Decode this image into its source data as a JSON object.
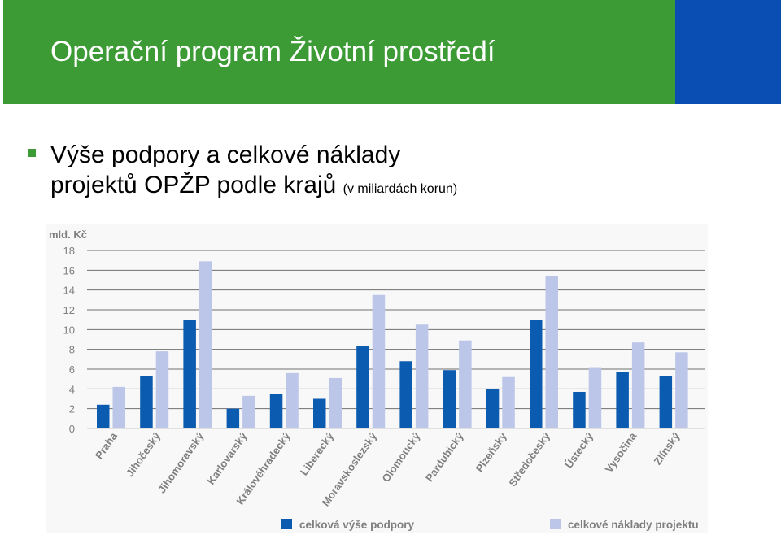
{
  "slide": {
    "title": "Operační program Životní prostředí",
    "subtitle_line1": "Výše podpory a celkové náklady",
    "subtitle_line2": "projektů OPŽP podle krajů",
    "subtitle_note": "(v miliardách korun)"
  },
  "colors": {
    "header_green": "#3c9b35",
    "header_blue": "#0b4eb3",
    "support_bar": "#0b5bb0",
    "cost_bar": "#bcc6e8"
  },
  "chart_data": {
    "type": "bar",
    "ylabel": "mld. Kč",
    "ylim": [
      0,
      18
    ],
    "yticks": [
      0,
      2,
      4,
      6,
      8,
      10,
      12,
      14,
      16,
      18
    ],
    "grid": true,
    "legend_position": "bottom",
    "categories": [
      "Praha",
      "Jihočeský",
      "Jihomoravský",
      "Karlovarský",
      "Královéhradecký",
      "Liberecký",
      "Moravskoslezský",
      "Olomoucký",
      "Pardubický",
      "Plzeňský",
      "Středočeský",
      "Ústecký",
      "Vysočina",
      "Zlínský"
    ],
    "series": [
      {
        "name": "celková výše podpory",
        "color": "#0b5bb0",
        "values": [
          2.4,
          5.3,
          11.0,
          2.0,
          3.5,
          3.0,
          8.3,
          6.8,
          5.9,
          4.0,
          11.0,
          3.7,
          5.7,
          5.3
        ]
      },
      {
        "name": "celkové náklady projektu",
        "color": "#bcc6e8",
        "values": [
          4.2,
          7.8,
          16.9,
          3.3,
          5.6,
          5.1,
          13.5,
          10.5,
          8.9,
          5.2,
          15.4,
          6.2,
          8.7,
          7.7
        ]
      }
    ]
  }
}
